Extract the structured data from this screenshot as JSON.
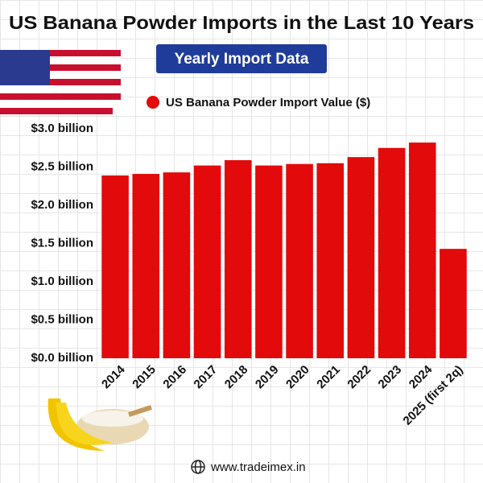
{
  "chart_data": {
    "type": "bar",
    "title": "US Banana Powder Imports in the Last 10 Years",
    "subtitle": "Yearly Import Data",
    "categories": [
      "2014",
      "2015",
      "2016",
      "2017",
      "2018",
      "2019",
      "2020",
      "2021",
      "2022",
      "2023",
      "2024",
      "2025 (first 2q)"
    ],
    "series": [
      {
        "name": "US Banana Powder Import Value ($)",
        "color": "#e20a0a",
        "values": [
          2.39,
          2.41,
          2.43,
          2.52,
          2.59,
          2.52,
          2.54,
          2.55,
          2.63,
          2.75,
          2.82,
          1.43
        ]
      }
    ],
    "ylim": [
      0,
      3.0
    ],
    "yticks": [
      {
        "value": 0,
        "label": "$0.0 billion"
      },
      {
        "value": 0.5,
        "label": "$0.5 billion"
      },
      {
        "value": 1.0,
        "label": "$1.0 billion"
      },
      {
        "value": 1.5,
        "label": "$1.5 billion"
      },
      {
        "value": 2.0,
        "label": "$2.0 billion"
      },
      {
        "value": 2.5,
        "label": "$2.5 billion"
      },
      {
        "value": 3.0,
        "label": "$3.0 billion"
      }
    ],
    "footer": "www.tradeimex.in"
  }
}
